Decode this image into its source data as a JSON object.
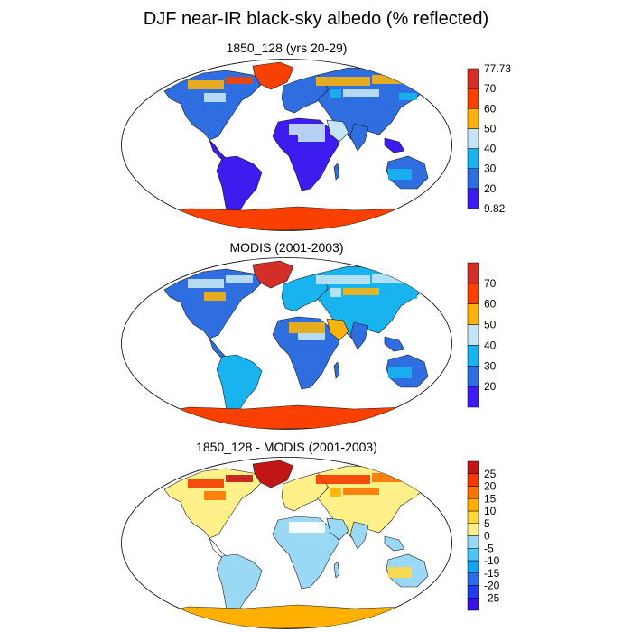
{
  "title": "DJF near-IR black-sky albedo (% reflected)",
  "colors": {
    "continent_outline": "#1a1a1a",
    "map_background": "#ffffff",
    "albedo_palette": [
      "#3d1cf0",
      "#2e6ee0",
      "#18b4f0",
      "#c5e4f6",
      "#fbb20c",
      "#f84000",
      "#d42e28"
    ],
    "diff_palette": [
      "#3813e6",
      "#1f3de9",
      "#2c6ce8",
      "#15a3f0",
      "#4fc4f5",
      "#9ad9f5",
      "#ffffff",
      "#fff089",
      "#ffd840",
      "#ffb000",
      "#ff7400",
      "#f23a00",
      "#c21616"
    ]
  },
  "chart_data": [
    {
      "type": "heatmap",
      "panel_title": "1850_128 (yrs 20-29)",
      "projection": "Robinson global map",
      "colorbar": {
        "levels": [
          20,
          30,
          40,
          50,
          60,
          70
        ],
        "labels": [
          "9.82",
          "20",
          "30",
          "40",
          "50",
          "60",
          "70",
          "77.73"
        ],
        "min": 9.82,
        "max": 77.73
      }
    },
    {
      "type": "heatmap",
      "panel_title": "MODIS (2001-2003)",
      "projection": "Robinson global map",
      "colorbar": {
        "levels": [
          20,
          30,
          40,
          50,
          60,
          70
        ],
        "labels": [
          "20",
          "30",
          "40",
          "50",
          "60",
          "70"
        ]
      }
    },
    {
      "type": "heatmap",
      "panel_title": "1850_128 - MODIS (2001-2003)",
      "projection": "Robinson global map",
      "colorbar": {
        "levels": [
          -25,
          -20,
          -15,
          -10,
          -5,
          0,
          5,
          10,
          15,
          20,
          25
        ],
        "labels": [
          "-25",
          "-20",
          "-15",
          "-10",
          "-5",
          "0",
          "5",
          "10",
          "15",
          "20",
          "25"
        ]
      }
    }
  ]
}
